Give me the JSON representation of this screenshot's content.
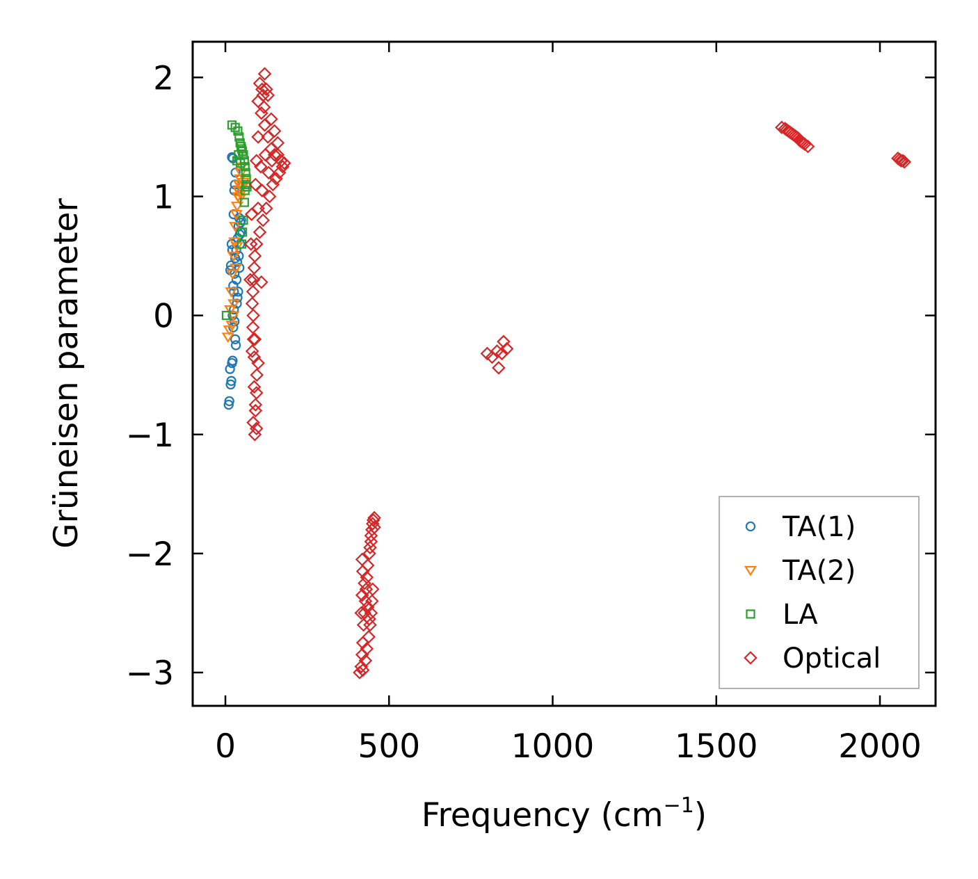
{
  "chart_data": {
    "type": "scatter",
    "title": "",
    "xlabel": "Frequency (cm",
    "xlabel_sup": "−1",
    "xlabel_close": ")",
    "ylabel": "Grüneisen parameter",
    "xlim": [
      -100,
      2170
    ],
    "ylim": [
      -3.28,
      2.3
    ],
    "xticks": [
      0,
      500,
      1000,
      1500,
      2000
    ],
    "xtick_labels": [
      "0",
      "500",
      "1000",
      "1500",
      "2000"
    ],
    "yticks": [
      2,
      1,
      0,
      -1,
      -2,
      -3
    ],
    "ytick_labels": [
      "2",
      "1",
      "0",
      "−1",
      "−2",
      "−3"
    ],
    "grid": false,
    "legend_position": "lower-right",
    "series": [
      {
        "name": "TA(1)",
        "marker": "circle",
        "color": "#1f77b4",
        "points": [
          [
            10,
            -0.75
          ],
          [
            12,
            -0.72
          ],
          [
            14,
            -0.45
          ],
          [
            16,
            -0.58
          ],
          [
            18,
            -0.55
          ],
          [
            20,
            -0.4
          ],
          [
            22,
            -0.38
          ],
          [
            15,
            0.38
          ],
          [
            17,
            0.42
          ],
          [
            19,
            0.6
          ],
          [
            21,
            0.55
          ],
          [
            24,
            0.25
          ],
          [
            26,
            0.05
          ],
          [
            28,
            -0.05
          ],
          [
            30,
            -0.2
          ],
          [
            32,
            -0.25
          ],
          [
            25,
            0.85
          ],
          [
            27,
            1.05
          ],
          [
            29,
            1.1
          ],
          [
            31,
            1.2
          ],
          [
            20,
            1.33
          ],
          [
            23,
            1.32
          ],
          [
            34,
            0.3
          ],
          [
            36,
            0.45
          ],
          [
            38,
            0.65
          ],
          [
            40,
            0.75
          ],
          [
            42,
            0.82
          ],
          [
            35,
            0.1
          ],
          [
            37,
            0.15
          ],
          [
            39,
            0.2
          ],
          [
            41,
            0.5
          ],
          [
            44,
            0.68
          ],
          [
            46,
            0.78
          ],
          [
            48,
            0.8
          ],
          [
            33,
            0.55
          ],
          [
            30,
            0.48
          ],
          [
            28,
            0.35
          ],
          [
            26,
            0.2
          ],
          [
            43,
            0.4
          ],
          [
            45,
            0.6
          ],
          [
            47,
            0.7
          ],
          [
            24,
            -0.1
          ],
          [
            22,
            0.0
          ]
        ]
      },
      {
        "name": "TA(2)",
        "marker": "triangle-down",
        "color": "#ff7f0e",
        "points": [
          [
            8,
            -0.18
          ],
          [
            12,
            -0.12
          ],
          [
            15,
            0.05
          ],
          [
            18,
            0.2
          ],
          [
            22,
            0.35
          ],
          [
            25,
            0.5
          ],
          [
            28,
            0.62
          ],
          [
            30,
            0.75
          ],
          [
            33,
            0.85
          ],
          [
            36,
            0.92
          ],
          [
            38,
            1.0
          ],
          [
            40,
            1.05
          ],
          [
            42,
            1.1
          ],
          [
            45,
            1.15
          ],
          [
            48,
            1.2
          ],
          [
            50,
            1.25
          ],
          [
            20,
            -0.08
          ],
          [
            26,
            0.1
          ],
          [
            32,
            0.4
          ],
          [
            35,
            0.58
          ],
          [
            44,
            0.98
          ],
          [
            46,
            1.02
          ],
          [
            52,
            1.08
          ],
          [
            55,
            1.12
          ],
          [
            24,
            0.0
          ]
        ]
      },
      {
        "name": "LA",
        "marker": "square",
        "color": "#2ca02c",
        "points": [
          [
            3,
            0.0
          ],
          [
            20,
            1.6
          ],
          [
            30,
            1.58
          ],
          [
            38,
            1.55
          ],
          [
            42,
            1.5
          ],
          [
            45,
            1.45
          ],
          [
            48,
            1.42
          ],
          [
            50,
            1.4
          ],
          [
            52,
            1.38
          ],
          [
            55,
            1.35
          ],
          [
            58,
            1.3
          ],
          [
            60,
            1.25
          ],
          [
            62,
            1.2
          ],
          [
            64,
            1.15
          ],
          [
            60,
            1.05
          ],
          [
            58,
            0.95
          ],
          [
            55,
            0.8
          ],
          [
            52,
            0.7
          ],
          [
            50,
            0.6
          ],
          [
            35,
            1.3
          ],
          [
            40,
            1.35
          ],
          [
            46,
            1.28
          ],
          [
            63,
            1.1
          ],
          [
            66,
            1.08
          ]
        ]
      },
      {
        "name": "Optical",
        "marker": "diamond",
        "color": "#d62728",
        "points": [
          [
            85,
            -0.9
          ],
          [
            90,
            -1.0
          ],
          [
            95,
            -0.95
          ],
          [
            92,
            -0.8
          ],
          [
            88,
            -0.6
          ],
          [
            96,
            -0.5
          ],
          [
            100,
            -0.4
          ],
          [
            82,
            -0.3
          ],
          [
            90,
            -0.2
          ],
          [
            110,
            0.28
          ],
          [
            85,
            0.0
          ],
          [
            120,
            2.03
          ],
          [
            105,
            1.95
          ],
          [
            112,
            1.9
          ],
          [
            130,
            1.85
          ],
          [
            140,
            1.65
          ],
          [
            150,
            1.55
          ],
          [
            160,
            1.45
          ],
          [
            170,
            1.3
          ],
          [
            175,
            1.25
          ],
          [
            165,
            1.2
          ],
          [
            155,
            1.15
          ],
          [
            145,
            1.1
          ],
          [
            135,
            1.0
          ],
          [
            125,
            0.9
          ],
          [
            115,
            0.8
          ],
          [
            105,
            0.7
          ],
          [
            95,
            0.6
          ],
          [
            90,
            0.5
          ],
          [
            88,
            0.4
          ],
          [
            86,
            0.3
          ],
          [
            84,
            0.2
          ],
          [
            82,
            0.1
          ],
          [
            84,
            -0.1
          ],
          [
            86,
            -0.2
          ],
          [
            88,
            -0.35
          ],
          [
            110,
            1.7
          ],
          [
            120,
            1.6
          ],
          [
            140,
            1.4
          ],
          [
            150,
            1.35
          ],
          [
            100,
            1.5
          ],
          [
            95,
            1.3
          ],
          [
            92,
            1.1
          ],
          [
            130,
            1.5
          ],
          [
            118,
            1.75
          ],
          [
            108,
            1.25
          ],
          [
            100,
            0.9
          ],
          [
            112,
            1.05
          ],
          [
            122,
            1.35
          ],
          [
            132,
            1.2
          ],
          [
            142,
            1.3
          ],
          [
            160,
            1.35
          ],
          [
            80,
            0.85
          ],
          [
            78,
            0.6
          ],
          [
            76,
            0.3
          ],
          [
            125,
            1.9
          ],
          [
            115,
            1.85
          ],
          [
            100,
            1.8
          ],
          [
            180,
            1.28
          ],
          [
            95,
            -0.65
          ],
          [
            92,
            -0.75
          ],
          [
            410,
            -3.0
          ],
          [
            415,
            -2.95
          ],
          [
            418,
            -2.85
          ],
          [
            420,
            -2.75
          ],
          [
            422,
            -2.6
          ],
          [
            425,
            -2.5
          ],
          [
            428,
            -2.4
          ],
          [
            430,
            -2.3
          ],
          [
            432,
            -2.2
          ],
          [
            435,
            -2.1
          ],
          [
            418,
            -2.05
          ],
          [
            420,
            -2.15
          ],
          [
            425,
            -2.25
          ],
          [
            440,
            -2.0
          ],
          [
            442,
            -1.95
          ],
          [
            445,
            -1.85
          ],
          [
            448,
            -1.8
          ],
          [
            450,
            -1.75
          ],
          [
            455,
            -1.7
          ],
          [
            452,
            -1.72
          ],
          [
            445,
            -1.9
          ],
          [
            450,
            -2.3
          ],
          [
            448,
            -2.4
          ],
          [
            445,
            -2.5
          ],
          [
            442,
            -2.6
          ],
          [
            438,
            -2.7
          ],
          [
            432,
            -2.8
          ],
          [
            428,
            -2.9
          ],
          [
            420,
            -2.98
          ],
          [
            415,
            -2.5
          ],
          [
            418,
            -2.35
          ],
          [
            435,
            -2.45
          ],
          [
            440,
            -2.55
          ],
          [
            455,
            -1.78
          ],
          [
            800,
            -0.32
          ],
          [
            815,
            -0.35
          ],
          [
            830,
            -0.3
          ],
          [
            835,
            -0.44
          ],
          [
            845,
            -0.32
          ],
          [
            850,
            -0.22
          ],
          [
            860,
            -0.28
          ],
          [
            1700,
            1.58
          ],
          [
            1710,
            1.57
          ],
          [
            1720,
            1.55
          ],
          [
            1730,
            1.53
          ],
          [
            1740,
            1.51
          ],
          [
            1750,
            1.49
          ],
          [
            1760,
            1.46
          ],
          [
            1770,
            1.44
          ],
          [
            1780,
            1.42
          ],
          [
            1715,
            1.56
          ],
          [
            1725,
            1.54
          ],
          [
            1735,
            1.52
          ],
          [
            1745,
            1.5
          ],
          [
            1755,
            1.47
          ],
          [
            1765,
            1.45
          ],
          [
            2055,
            1.32
          ],
          [
            2060,
            1.31
          ],
          [
            2065,
            1.3
          ],
          [
            2070,
            1.3
          ],
          [
            2075,
            1.29
          ]
        ]
      }
    ]
  }
}
